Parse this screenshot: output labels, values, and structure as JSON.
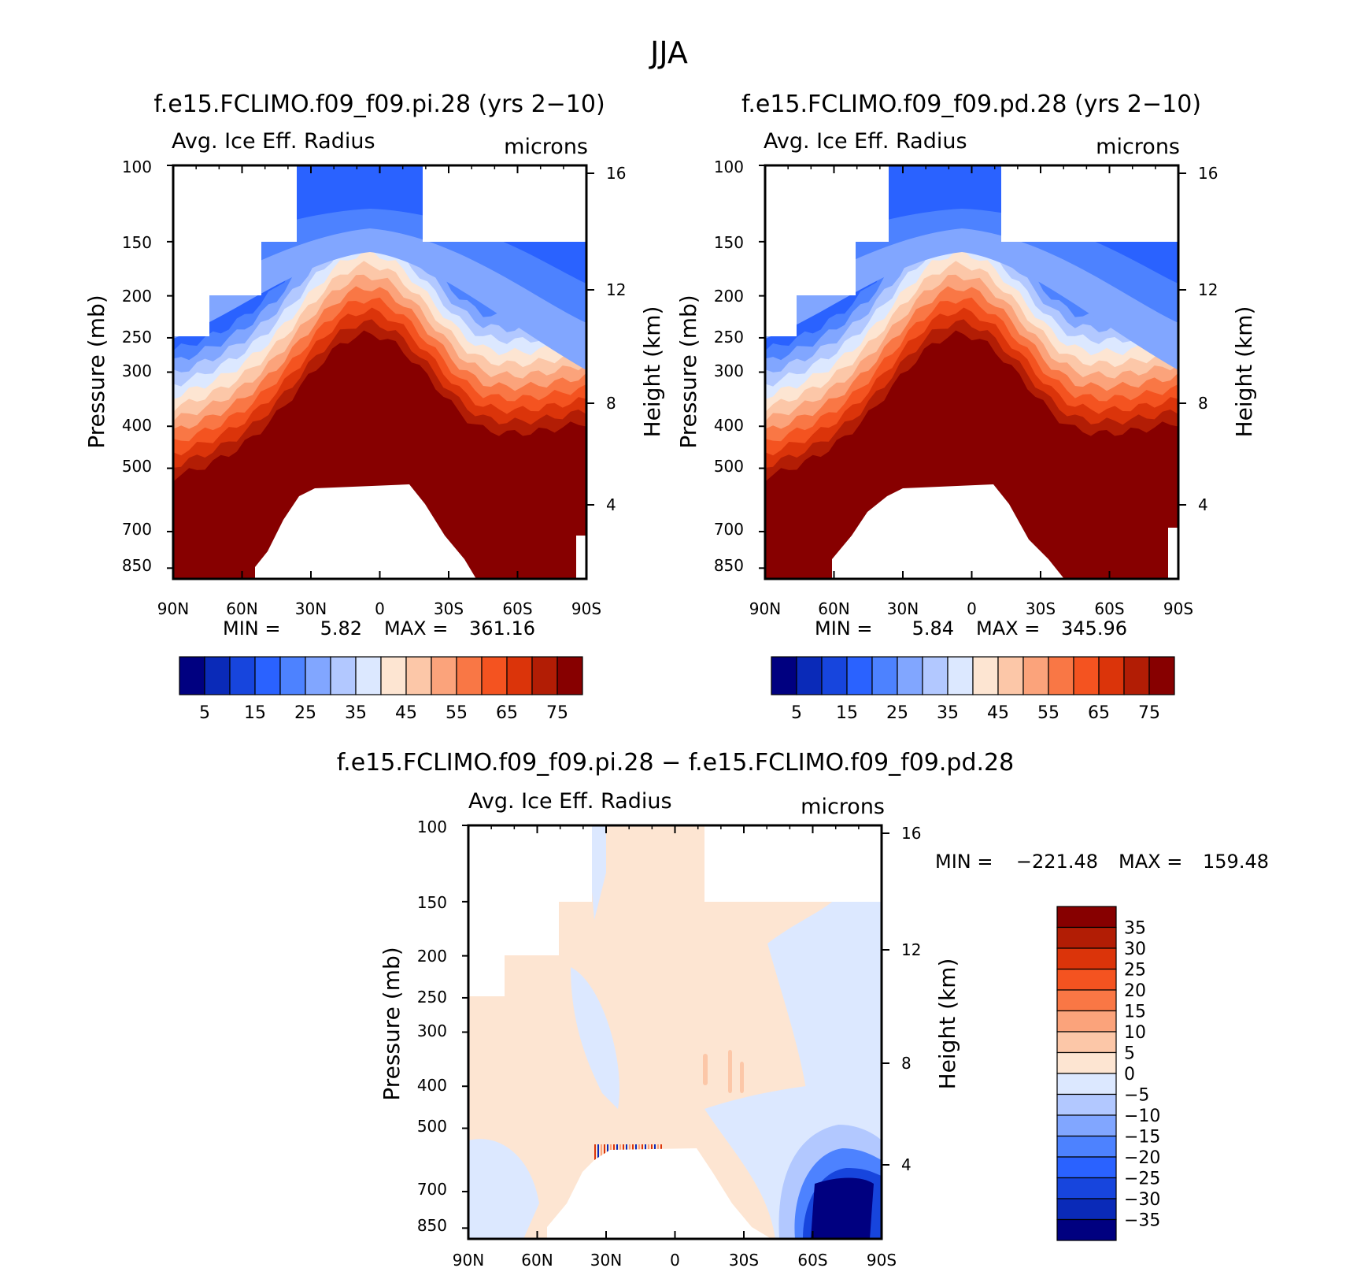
{
  "figure": {
    "title": "JJA"
  },
  "colors": {
    "abs": [
      "#000080",
      "#0a2ab8",
      "#1745dd",
      "#2a62ff",
      "#4d82ff",
      "#81a6ff",
      "#b2c8ff",
      "#dce8ff",
      "#fde5d2",
      "#fcc7a8",
      "#fba37b",
      "#f97745",
      "#f45320",
      "#db340a",
      "#b21d05",
      "#870000"
    ],
    "diff": [
      "#000080",
      "#0a2ab8",
      "#1745dd",
      "#2a62ff",
      "#4d82ff",
      "#81a6ff",
      "#b2c8ff",
      "#dce8ff",
      "#fde5d2",
      "#fcc7a8",
      "#fba37b",
      "#f97745",
      "#f45320",
      "#db340a",
      "#b21d05",
      "#870000"
    ]
  },
  "chart_data": [
    {
      "type": "heatmap",
      "title": "f.e15.FCLIMO.f09_f09.pi.28 (yrs 2−10)",
      "left_label": "Avg. Ice Eff. Radius",
      "right_label": "microns",
      "ylabel": "Pressure (mb)",
      "ylabel_right": "Height (km)",
      "xticklabels": [
        "90N",
        "60N",
        "30N",
        "0",
        "30S",
        "60S",
        "90S"
      ],
      "x": [
        90,
        60,
        30,
        0,
        -30,
        -60,
        -90
      ],
      "yticklabels": [
        "100",
        "150",
        "200",
        "250",
        "300",
        "400",
        "500",
        "700",
        "850"
      ],
      "y": [
        100,
        150,
        200,
        250,
        300,
        400,
        500,
        700,
        850
      ],
      "yrticklabels": [
        "16",
        "12",
        "8",
        "4"
      ],
      "yr": [
        16,
        12,
        8,
        4
      ],
      "ylim": [
        100,
        900
      ],
      "yscale": "log",
      "min_label": "MIN =",
      "min_value": "5.82",
      "max_label": "MAX =",
      "max_value": "361.16",
      "colorbar_labels": [
        "5",
        "15",
        "25",
        "35",
        "45",
        "55",
        "65",
        "75"
      ],
      "colorbar_levels": [
        0,
        5,
        10,
        15,
        20,
        25,
        30,
        35,
        40,
        45,
        50,
        55,
        60,
        65,
        70,
        75
      ],
      "colorbar_orientation": "horizontal",
      "field": "absolute"
    },
    {
      "type": "heatmap",
      "title": "f.e15.FCLIMO.f09_f09.pd.28 (yrs 2−10)",
      "left_label": "Avg. Ice Eff. Radius",
      "right_label": "microns",
      "ylabel": "Pressure (mb)",
      "ylabel_right": "Height (km)",
      "xticklabels": [
        "90N",
        "60N",
        "30N",
        "0",
        "30S",
        "60S",
        "90S"
      ],
      "x": [
        90,
        60,
        30,
        0,
        -30,
        -60,
        -90
      ],
      "yticklabels": [
        "100",
        "150",
        "200",
        "250",
        "300",
        "400",
        "500",
        "700",
        "850"
      ],
      "y": [
        100,
        150,
        200,
        250,
        300,
        400,
        500,
        700,
        850
      ],
      "yrticklabels": [
        "16",
        "12",
        "8",
        "4"
      ],
      "yr": [
        16,
        12,
        8,
        4
      ],
      "ylim": [
        100,
        900
      ],
      "yscale": "log",
      "min_label": "MIN =",
      "min_value": "5.84",
      "max_label": "MAX =",
      "max_value": "345.96",
      "colorbar_labels": [
        "5",
        "15",
        "25",
        "35",
        "45",
        "55",
        "65",
        "75"
      ],
      "colorbar_levels": [
        0,
        5,
        10,
        15,
        20,
        25,
        30,
        35,
        40,
        45,
        50,
        55,
        60,
        65,
        70,
        75
      ],
      "colorbar_orientation": "horizontal",
      "field": "absolute"
    },
    {
      "type": "heatmap",
      "title": "f.e15.FCLIMO.f09_f09.pi.28 − f.e15.FCLIMO.f09_f09.pd.28",
      "left_label": "Avg. Ice Eff. Radius",
      "right_label": "microns",
      "ylabel": "Pressure (mb)",
      "ylabel_right": "Height (km)",
      "xticklabels": [
        "90N",
        "60N",
        "30N",
        "0",
        "30S",
        "60S",
        "90S"
      ],
      "x": [
        90,
        60,
        30,
        0,
        -30,
        -60,
        -90
      ],
      "yticklabels": [
        "100",
        "150",
        "200",
        "250",
        "300",
        "400",
        "500",
        "700",
        "850"
      ],
      "y": [
        100,
        150,
        200,
        250,
        300,
        400,
        500,
        700,
        850
      ],
      "yrticklabels": [
        "16",
        "12",
        "8",
        "4"
      ],
      "yr": [
        16,
        12,
        8,
        4
      ],
      "ylim": [
        100,
        900
      ],
      "yscale": "log",
      "min_label": "MIN =",
      "min_value": "−221.48",
      "max_label": "MAX =",
      "max_value": "159.48",
      "colorbar_labels": [
        "35",
        "30",
        "25",
        "20",
        "15",
        "10",
        "5",
        "0",
        "−5",
        "−10",
        "−15",
        "−20",
        "−25",
        "−30",
        "−35"
      ],
      "colorbar_levels": [
        35,
        30,
        25,
        20,
        15,
        10,
        5,
        0,
        -5,
        -10,
        -15,
        -20,
        -25,
        -30,
        -35
      ],
      "colorbar_orientation": "vertical",
      "field": "difference"
    }
  ]
}
